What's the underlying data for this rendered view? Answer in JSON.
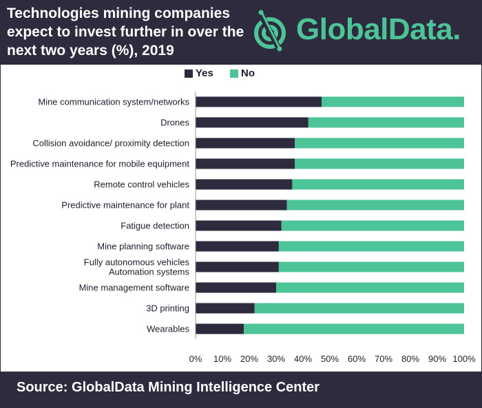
{
  "header": {
    "title": "Technologies mining companies expect to invest further in over the next two years (%), 2019",
    "brand": "GlobalData."
  },
  "colors": {
    "header_bg": "#2d2b3d",
    "yes": "#2d2b3d",
    "no": "#4cc497",
    "brand_green": "#4cc497",
    "axis_text": "#1e1c2c"
  },
  "icons": {
    "logo": "globaldata-logo-icon"
  },
  "chart_data": {
    "type": "bar",
    "orientation": "horizontal",
    "stacked": true,
    "normalized_percent": true,
    "title": "Technologies mining companies expect to invest further in over the next two years (%), 2019",
    "categories": [
      "Mine communication system/networks",
      "Drones",
      "Collision avoidance/ proximity detection",
      "Predictive maintenance for mobile equipment",
      "Remote control vehicles",
      "Predictive maintenance for plant",
      "Fatigue detection",
      "Mine planning software",
      "Fully autonomous vehicles\nAutomation systems",
      "Mine management software",
      "3D printing",
      "Wearables"
    ],
    "series": [
      {
        "name": "Yes",
        "values": [
          47,
          42,
          37,
          37,
          36,
          34,
          32,
          31,
          31,
          30,
          22,
          18
        ]
      },
      {
        "name": "No",
        "values": [
          53,
          58,
          63,
          63,
          64,
          66,
          68,
          69,
          69,
          70,
          78,
          82
        ]
      }
    ],
    "xlim": [
      0,
      100
    ],
    "x_ticks": [
      "0%",
      "10%",
      "20%",
      "30%",
      "40%",
      "50%",
      "60%",
      "70%",
      "80%",
      "90%",
      "100%"
    ],
    "legend": {
      "position": "top",
      "entries": [
        "Yes",
        "No"
      ]
    },
    "grid": false
  },
  "footer": {
    "source": "Source:  GlobalData Mining Intelligence Center"
  }
}
